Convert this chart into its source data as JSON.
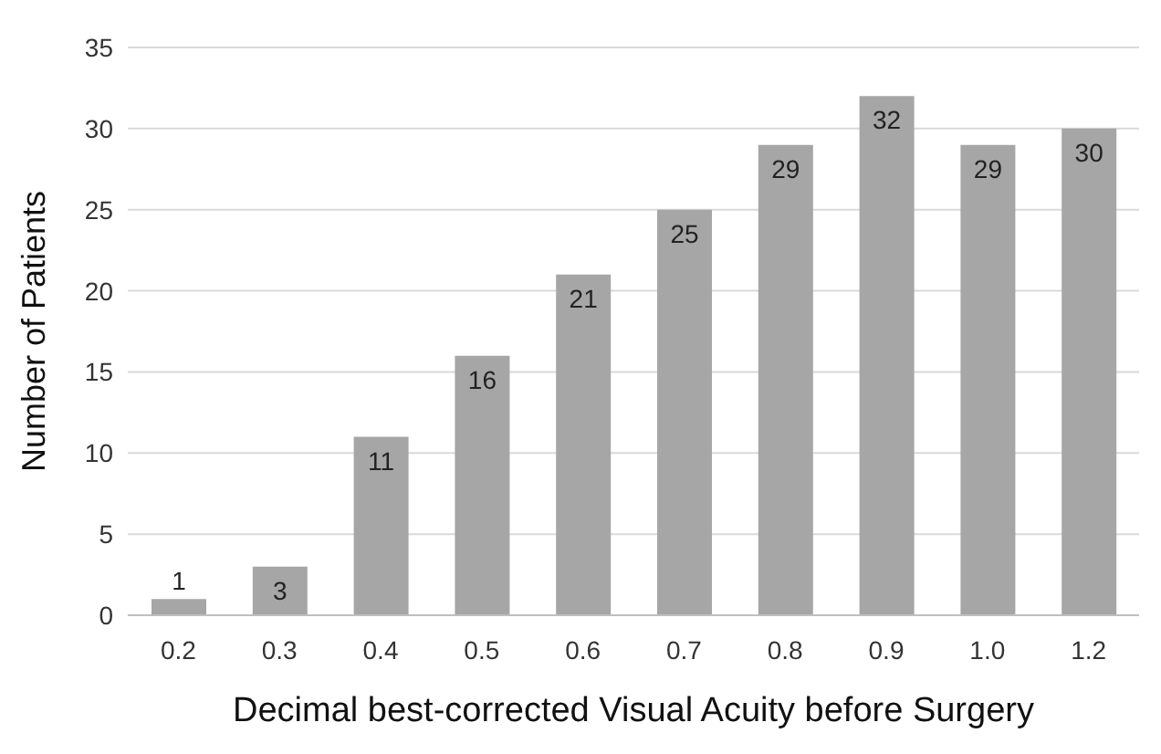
{
  "chart_data": {
    "type": "bar",
    "xlabel": "Decimal best-corrected Visual Acuity before Surgery",
    "ylabel": "Number of Patients",
    "categories": [
      "0.2",
      "0.3",
      "0.4",
      "0.5",
      "0.6",
      "0.7",
      "0.8",
      "0.9",
      "1.0",
      "1.2"
    ],
    "values": [
      1,
      3,
      11,
      16,
      21,
      25,
      29,
      32,
      29,
      30
    ],
    "color": "#a6a6a6",
    "ylim": [
      0,
      35
    ],
    "yticks": [
      0,
      5,
      10,
      15,
      20,
      25,
      30,
      35
    ],
    "grid": "y",
    "data_labels": true
  }
}
